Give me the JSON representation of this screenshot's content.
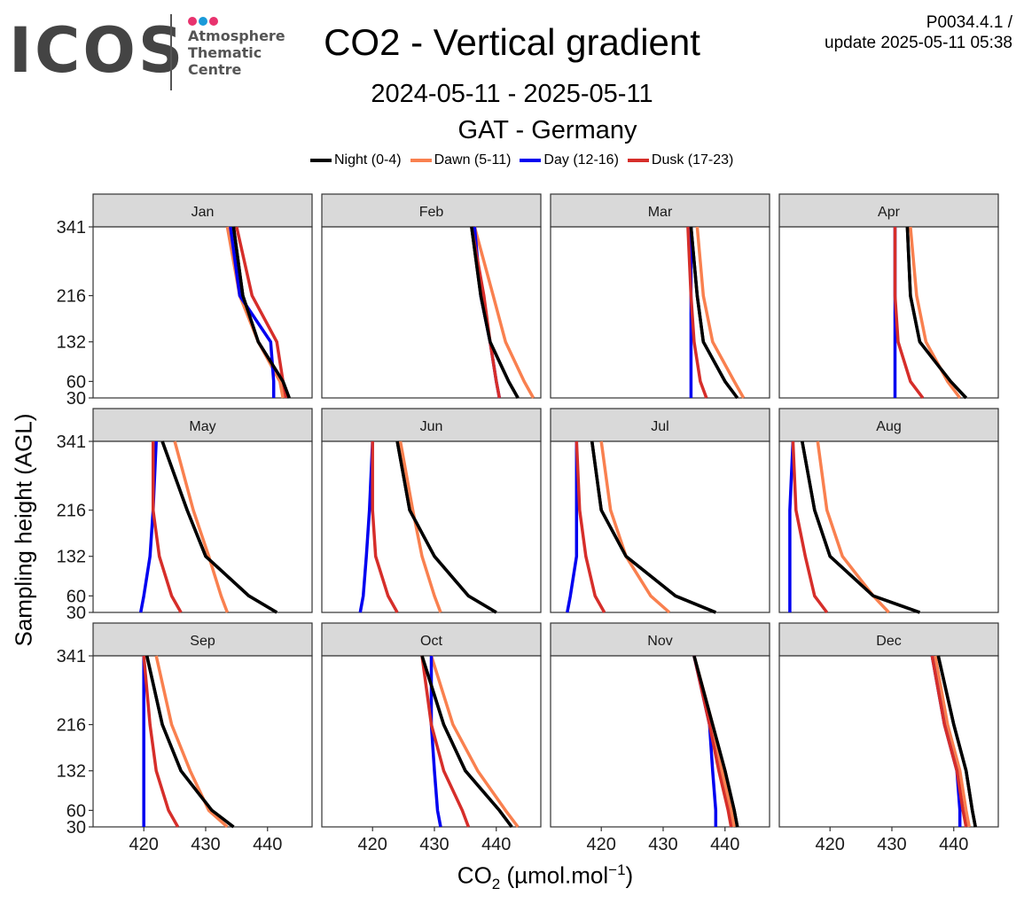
{
  "header": {
    "logo_text": "ICOS",
    "logo_subtitle": [
      "Atmosphere",
      "Thematic",
      "Centre"
    ],
    "logo_dot_colors": [
      "#e8336e",
      "#1a9ad9",
      "#e8336e"
    ],
    "title": "CO2 - Vertical gradient",
    "date_range": "2024-05-11 - 2025-05-11",
    "station": "GAT - Germany",
    "product_id": "P0034.4.1 /",
    "update": "update  2025-05-11 05:38"
  },
  "chart_data": {
    "type": "line",
    "layout": "facet-grid-3x4",
    "ylabel": "Sampling height (AGL)",
    "xlabel_prefix": "CO",
    "xlabel_sub": "2",
    "xlabel_unit": " (µmol.mol",
    "xlabel_sup": "−1",
    "xlabel_close": ")",
    "heights": [
      30,
      60,
      132,
      216,
      341
    ],
    "y_ticks": [
      30,
      60,
      132,
      216,
      341
    ],
    "x_ticks": [
      420,
      430,
      440
    ],
    "xlim": [
      411.8,
      447.2
    ],
    "ylim": [
      30,
      341
    ],
    "legend_position": "top",
    "series_styles": [
      {
        "name": "Night (0-4)",
        "color": "#000000"
      },
      {
        "name": "Dawn (5-11)",
        "color": "#f9804f"
      },
      {
        "name": "Day (12-16)",
        "color": "#0000f0"
      },
      {
        "name": "Dusk (17-23)",
        "color": "#d62e2a"
      }
    ],
    "panels": [
      {
        "month": "Jan",
        "series": [
          {
            "name": "Night (0-4)",
            "values": [
              443.5,
              442.5,
              438.5,
              436.0,
              434.5
            ]
          },
          {
            "name": "Dawn (5-11)",
            "values": [
              442.5,
              442.0,
              438.5,
              435.5,
              433.5
            ]
          },
          {
            "name": "Day (12-16)",
            "values": [
              441.0,
              441.0,
              440.5,
              435.5,
              434.0
            ]
          },
          {
            "name": "Dusk (17-23)",
            "values": [
              443.0,
              442.5,
              441.5,
              437.5,
              435.0
            ]
          }
        ]
      },
      {
        "month": "Feb",
        "series": [
          {
            "name": "Night (0-4)",
            "values": [
              443.5,
              442.0,
              439.0,
              437.5,
              436.0
            ]
          },
          {
            "name": "Dawn (5-11)",
            "values": [
              446.0,
              444.5,
              441.5,
              439.5,
              436.5
            ]
          },
          {
            "name": "Day (12-16)",
            "values": [
              440.5,
              440.0,
              439.0,
              437.5,
              436.5
            ]
          },
          {
            "name": "Dusk (17-23)",
            "values": [
              440.5,
              440.0,
              439.0,
              438.0,
              436.0
            ]
          }
        ]
      },
      {
        "month": "Mar",
        "series": [
          {
            "name": "Night (0-4)",
            "values": [
              442.0,
              440.0,
              436.5,
              435.5,
              434.5
            ]
          },
          {
            "name": "Dawn (5-11)",
            "values": [
              443.0,
              441.5,
              438.0,
              436.5,
              435.5
            ]
          },
          {
            "name": "Day (12-16)",
            "values": [
              434.5,
              434.5,
              434.5,
              434.5,
              434.5
            ]
          },
          {
            "name": "Dusk (17-23)",
            "values": [
              437.0,
              436.0,
              435.0,
              434.5,
              434.0
            ]
          }
        ]
      },
      {
        "month": "Apr",
        "series": [
          {
            "name": "Night (0-4)",
            "values": [
              442.0,
              439.5,
              434.5,
              433.0,
              432.5
            ]
          },
          {
            "name": "Dawn (5-11)",
            "values": [
              441.0,
              439.0,
              435.5,
              434.0,
              433.0
            ]
          },
          {
            "name": "Day (12-16)",
            "values": [
              430.5,
              430.5,
              430.5,
              430.5,
              430.5
            ]
          },
          {
            "name": "Dusk (17-23)",
            "values": [
              435.0,
              433.0,
              431.0,
              430.5,
              430.5
            ]
          }
        ]
      },
      {
        "month": "May",
        "series": [
          {
            "name": "Night (0-4)",
            "values": [
              441.5,
              437.0,
              430.0,
              427.0,
              423.0
            ]
          },
          {
            "name": "Dawn (5-11)",
            "values": [
              433.5,
              432.5,
              430.5,
              428.0,
              425.0
            ]
          },
          {
            "name": "Day (12-16)",
            "values": [
              419.5,
              420.0,
              421.0,
              421.5,
              422.0
            ]
          },
          {
            "name": "Dusk (17-23)",
            "values": [
              426.0,
              424.5,
              422.5,
              421.5,
              421.5
            ]
          }
        ]
      },
      {
        "month": "Jun",
        "series": [
          {
            "name": "Night (0-4)",
            "values": [
              440.0,
              435.5,
              430.0,
              426.0,
              424.0
            ]
          },
          {
            "name": "Dawn (5-11)",
            "values": [
              431.0,
              430.0,
              428.0,
              426.5,
              424.5
            ]
          },
          {
            "name": "Day (12-16)",
            "values": [
              418.0,
              418.5,
              419.0,
              419.5,
              420.0
            ]
          },
          {
            "name": "Dusk (17-23)",
            "values": [
              424.0,
              422.5,
              420.5,
              420.0,
              420.0
            ]
          }
        ]
      },
      {
        "month": "Jul",
        "series": [
          {
            "name": "Night (0-4)",
            "values": [
              438.5,
              432.0,
              424.0,
              420.0,
              418.5
            ]
          },
          {
            "name": "Dawn (5-11)",
            "values": [
              431.0,
              428.0,
              424.0,
              421.5,
              420.0
            ]
          },
          {
            "name": "Day (12-16)",
            "values": [
              414.5,
              415.0,
              416.0,
              416.0,
              416.0
            ]
          },
          {
            "name": "Dusk (17-23)",
            "values": [
              420.5,
              419.0,
              417.5,
              416.5,
              416.0
            ]
          }
        ]
      },
      {
        "month": "Aug",
        "series": [
          {
            "name": "Night (0-4)",
            "values": [
              434.5,
              427.0,
              420.0,
              417.5,
              415.5
            ]
          },
          {
            "name": "Dawn (5-11)",
            "values": [
              429.5,
              427.0,
              422.0,
              419.5,
              418.0
            ]
          },
          {
            "name": "Day (12-16)",
            "values": [
              413.5,
              413.5,
              413.5,
              413.5,
              414.0
            ]
          },
          {
            "name": "Dusk (17-23)",
            "values": [
              419.5,
              417.5,
              416.0,
              414.5,
              414.0
            ]
          }
        ]
      },
      {
        "month": "Sep",
        "series": [
          {
            "name": "Night (0-4)",
            "values": [
              434.5,
              431.0,
              426.0,
              423.0,
              420.5
            ]
          },
          {
            "name": "Dawn (5-11)",
            "values": [
              433.5,
              430.5,
              427.5,
              424.5,
              422.0
            ]
          },
          {
            "name": "Day (12-16)",
            "values": [
              420.0,
              420.0,
              420.0,
              420.0,
              420.0
            ]
          },
          {
            "name": "Dusk (17-23)",
            "values": [
              425.5,
              424.0,
              422.0,
              421.0,
              420.0
            ]
          }
        ]
      },
      {
        "month": "Oct",
        "series": [
          {
            "name": "Night (0-4)",
            "values": [
              442.5,
              440.5,
              435.0,
              431.5,
              428.0
            ]
          },
          {
            "name": "Dawn (5-11)",
            "values": [
              443.5,
              441.5,
              437.0,
              433.0,
              429.5
            ]
          },
          {
            "name": "Day (12-16)",
            "values": [
              431.0,
              430.5,
              430.0,
              429.5,
              429.5
            ]
          },
          {
            "name": "Dusk (17-23)",
            "values": [
              435.5,
              434.5,
              431.5,
              429.5,
              428.0
            ]
          }
        ]
      },
      {
        "month": "Nov",
        "series": [
          {
            "name": "Night (0-4)",
            "values": [
              442.0,
              441.5,
              440.0,
              438.0,
              435.0
            ]
          },
          {
            "name": "Dawn (5-11)",
            "values": [
              441.5,
              441.0,
              439.5,
              438.0,
              435.0
            ]
          },
          {
            "name": "Day (12-16)",
            "values": [
              438.5,
              438.5,
              438.0,
              437.5,
              435.0
            ]
          },
          {
            "name": "Dusk (17-23)",
            "values": [
              441.0,
              440.5,
              439.0,
              437.5,
              435.0
            ]
          }
        ]
      },
      {
        "month": "Dec",
        "series": [
          {
            "name": "Night (0-4)",
            "values": [
              443.5,
              443.0,
              442.0,
              440.0,
              437.5
            ]
          },
          {
            "name": "Dawn (5-11)",
            "values": [
              442.5,
              442.0,
              441.0,
              439.0,
              437.0
            ]
          },
          {
            "name": "Day (12-16)",
            "values": [
              441.0,
              441.0,
              440.5,
              438.5,
              436.5
            ]
          },
          {
            "name": "Dusk (17-23)",
            "values": [
              442.0,
              441.5,
              440.5,
              438.5,
              436.5
            ]
          }
        ]
      }
    ]
  }
}
